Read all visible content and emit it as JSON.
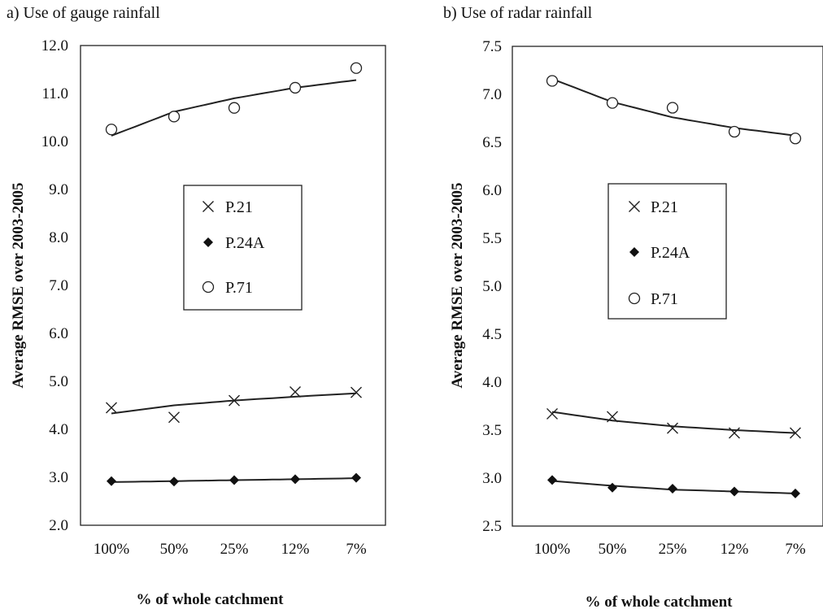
{
  "chart_data": [
    {
      "type": "scatter",
      "title": "a) Use of gauge rainfall",
      "xlabel": "% of whole catchment",
      "ylabel": "Average RMSE over 2003-2005",
      "categories": [
        "100%",
        "50%",
        "25%",
        "12%",
        "7%"
      ],
      "ylim": [
        2.0,
        12.0
      ],
      "yticks": [
        "2.0",
        "3.0",
        "4.0",
        "5.0",
        "6.0",
        "7.0",
        "8.0",
        "9.0",
        "10.0",
        "11.0",
        "12.0"
      ],
      "grid": false,
      "legend": "center",
      "series": [
        {
          "name": "P.21",
          "marker": "x",
          "values": [
            4.45,
            4.25,
            4.6,
            4.78,
            4.77
          ],
          "trend": [
            4.33,
            4.5,
            4.6,
            4.68,
            4.75
          ]
        },
        {
          "name": "P.24A",
          "marker": "diamond",
          "values": [
            2.92,
            2.91,
            2.94,
            2.96,
            2.99
          ],
          "trend": [
            2.9,
            2.92,
            2.94,
            2.96,
            2.98
          ]
        },
        {
          "name": "P.71",
          "marker": "circle",
          "values": [
            10.25,
            10.52,
            10.7,
            11.12,
            11.53
          ],
          "trend": [
            10.12,
            10.62,
            10.9,
            11.12,
            11.28
          ]
        }
      ]
    },
    {
      "type": "scatter",
      "title": "b) Use of radar rainfall",
      "xlabel": "% of whole catchment",
      "ylabel": "Average RMSE over 2003-2005",
      "categories": [
        "100%",
        "50%",
        "25%",
        "12%",
        "7%"
      ],
      "ylim": [
        2.5,
        7.5
      ],
      "yticks": [
        "2.5",
        "3.0",
        "3.5",
        "4.0",
        "4.5",
        "5.0",
        "5.5",
        "6.0",
        "6.5",
        "7.0",
        "7.5"
      ],
      "grid": false,
      "legend": "center",
      "series": [
        {
          "name": "P.21",
          "marker": "x",
          "values": [
            3.67,
            3.64,
            3.52,
            3.47,
            3.47
          ],
          "trend": [
            3.69,
            3.6,
            3.54,
            3.5,
            3.47
          ]
        },
        {
          "name": "P.24A",
          "marker": "diamond",
          "values": [
            2.98,
            2.9,
            2.89,
            2.86,
            2.84
          ],
          "trend": [
            2.97,
            2.92,
            2.88,
            2.86,
            2.84
          ]
        },
        {
          "name": "P.71",
          "marker": "circle",
          "values": [
            7.14,
            6.91,
            6.86,
            6.61,
            6.54
          ],
          "trend": [
            7.16,
            6.92,
            6.76,
            6.65,
            6.57
          ]
        }
      ]
    }
  ]
}
